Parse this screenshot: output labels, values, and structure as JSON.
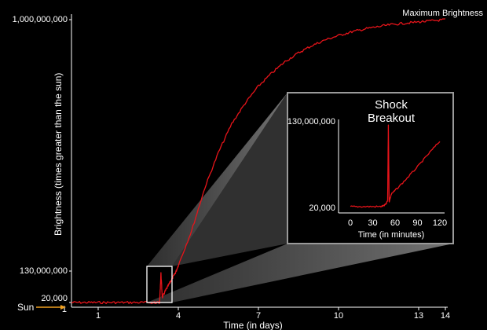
{
  "chart_data": [
    {
      "type": "line",
      "title": "",
      "xlabel": "Time (in days)",
      "ylabel": "Brightness  (times greater than the sun)",
      "x_ticks": [
        1,
        4,
        7,
        10,
        13,
        14
      ],
      "xlim": [
        0,
        14
      ],
      "y_ticks": [
        {
          "value": 20000,
          "label": "20,000"
        },
        {
          "value": 130000000,
          "label": "130,000,000"
        },
        {
          "value": 1000000000,
          "label": "1,000,000,000"
        }
      ],
      "ylim": [
        0,
        1000000000
      ],
      "grid": false,
      "line_color": "#e8141a",
      "annotations": {
        "peak": "Maximum Brightness",
        "sun": "Sun"
      },
      "series": [
        {
          "x": [
            0,
            0.5,
            1,
            1.5,
            2,
            2.5,
            3,
            3.1,
            3.2,
            3.3,
            3.35,
            3.4,
            3.5,
            3.6,
            3.7,
            3.8,
            3.9,
            4,
            4.5,
            5,
            5.5,
            6,
            6.5,
            7,
            7.5,
            8,
            8.5,
            9,
            9.5,
            10,
            10.5,
            11,
            11.5,
            12,
            12.5,
            13,
            13.5,
            14
          ],
          "y": [
            20000,
            20000,
            20000,
            20000,
            20000,
            20000,
            20000,
            20000,
            20000,
            20000,
            120000000,
            20000000,
            45000000,
            65000000,
            85000000,
            105000000,
            125000000,
            150000000,
            270000000,
            420000000,
            540000000,
            640000000,
            710000000,
            770000000,
            815000000,
            855000000,
            885000000,
            910000000,
            930000000,
            945000000,
            958000000,
            968000000,
            976000000,
            983000000,
            988000000,
            992000000,
            996000000,
            1000000000
          ]
        }
      ]
    },
    {
      "type": "line",
      "title": "Shock\nBreakout",
      "xlabel": "Time (in minutes)",
      "ylabel": "",
      "x_ticks": [
        0,
        30,
        60,
        90,
        120
      ],
      "xlim": [
        0,
        125
      ],
      "y_ticks": [
        {
          "value": 20000,
          "label": "20,000"
        },
        {
          "value": 130000000,
          "label": "130,000,000"
        }
      ],
      "ylim": [
        0,
        130000000
      ],
      "grid": false,
      "line_color": "#e8141a",
      "series": [
        {
          "x": [
            0,
            10,
            20,
            30,
            40,
            45,
            48,
            50,
            51,
            52,
            53,
            55,
            60,
            70,
            80,
            90,
            100,
            110,
            120
          ],
          "y": [
            20000,
            20000,
            20000,
            20000,
            20000,
            1500000,
            4000000,
            10000000,
            130000000,
            8000000,
            12000000,
            20000000,
            26000000,
            38000000,
            51000000,
            64000000,
            78000000,
            92000000,
            105000000
          ]
        }
      ]
    }
  ],
  "labels": {
    "peak": "Maximum Brightness",
    "sun": "Sun",
    "inset_title_line1": "Shock",
    "inset_title_line2": "Breakout",
    "main_xlabel": "Time (in days)",
    "main_ylabel": "Brightness  (times greater than the sun)",
    "inset_xlabel": "Time (in minutes)",
    "main_y_20k": "20,000",
    "main_y_130m": "130,000,000",
    "main_y_1b": "1,000,000,000",
    "main_x_origin": "1",
    "inset_y_130m": "130,000,000",
    "inset_y_20k": "20,000"
  },
  "colors": {
    "background": "#000000",
    "curve": "#e8141a",
    "sun_arrow": "#f0a020",
    "axis": "#ffffff"
  }
}
